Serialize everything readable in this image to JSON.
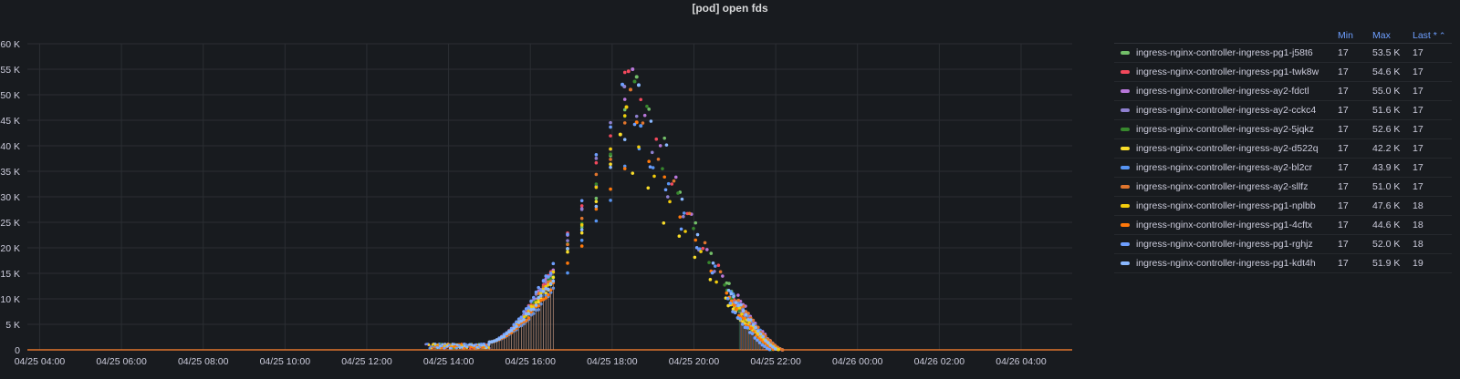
{
  "chart_data": {
    "type": "scatter",
    "title": "[pod] open fds",
    "y_ticks": [
      "60 K",
      "55 K",
      "50 K",
      "45 K",
      "40 K",
      "35 K",
      "30 K",
      "25 K",
      "20 K",
      "15 K",
      "10 K",
      "5 K",
      "0"
    ],
    "y_range": [
      0,
      60000
    ],
    "x_ticks": [
      "04/25 04:00",
      "04/25 06:00",
      "04/25 08:00",
      "04/25 10:00",
      "04/25 12:00",
      "04/25 14:00",
      "04/25 16:00",
      "04/25 18:00",
      "04/25 20:00",
      "04/25 22:00",
      "04/26 00:00",
      "04/26 02:00",
      "04/26 04:00"
    ],
    "x_range_hours": [
      3.7,
      29.25
    ],
    "x_tick_hours": [
      4,
      6,
      8,
      10,
      12,
      14,
      16,
      18,
      20,
      22,
      24,
      26,
      28
    ],
    "grid": true,
    "legend_placement": "right",
    "legend_columns": [
      "Min",
      "Max",
      "Last *"
    ],
    "series": [
      {
        "name": "ingress-nginx-controller-ingress-pg1-j58t6",
        "color": "#73bf69",
        "min": "17",
        "max": "53.5 K",
        "last": "17",
        "peak": 53500,
        "peak_h": 18.6
      },
      {
        "name": "ingress-nginx-controller-ingress-pg1-twk8w",
        "color": "#f2495c",
        "min": "17",
        "max": "54.6 K",
        "last": "17",
        "peak": 54600,
        "peak_h": 18.4
      },
      {
        "name": "ingress-nginx-controller-ingress-ay2-fdctl",
        "color": "#b877d9",
        "min": "17",
        "max": "55.0 K",
        "last": "17",
        "peak": 55000,
        "peak_h": 18.5
      },
      {
        "name": "ingress-nginx-controller-ingress-ay2-cckc4",
        "color": "#8f80cf",
        "min": "17",
        "max": "51.6 K",
        "last": "17",
        "peak": 51600,
        "peak_h": 18.3
      },
      {
        "name": "ingress-nginx-controller-ingress-ay2-5jqkz",
        "color": "#37872d",
        "min": "17",
        "max": "52.6 K",
        "last": "17",
        "peak": 52600,
        "peak_h": 18.55
      },
      {
        "name": "ingress-nginx-controller-ingress-ay2-d522q",
        "color": "#fade2a",
        "min": "17",
        "max": "42.2 K",
        "last": "17",
        "peak": 42200,
        "peak_h": 18.2
      },
      {
        "name": "ingress-nginx-controller-ingress-ay2-bl2cr",
        "color": "#5794f2",
        "min": "17",
        "max": "43.9 K",
        "last": "17",
        "peak": 43900,
        "peak_h": 18.7
      },
      {
        "name": "ingress-nginx-controller-ingress-ay2-sllfz",
        "color": "#e0752d",
        "min": "17",
        "max": "51.0 K",
        "last": "17",
        "peak": 51000,
        "peak_h": 18.45
      },
      {
        "name": "ingress-nginx-controller-ingress-pg1-nplbb",
        "color": "#f2cc0c",
        "min": "17",
        "max": "47.6 K",
        "last": "18",
        "peak": 47600,
        "peak_h": 18.35
      },
      {
        "name": "ingress-nginx-controller-ingress-pg1-4cftx",
        "color": "#ff780a",
        "min": "17",
        "max": "44.6 K",
        "last": "18",
        "peak": 44600,
        "peak_h": 18.6
      },
      {
        "name": "ingress-nginx-controller-ingress-pg1-rghjz",
        "color": "#6e9fff",
        "min": "17",
        "max": "52.0 K",
        "last": "18",
        "peak": 52000,
        "peak_h": 18.25
      },
      {
        "name": "ingress-nginx-controller-ingress-pg1-kdt4h",
        "color": "#8ab8ff",
        "min": "17",
        "max": "51.9 K",
        "last": "19",
        "peak": 51900,
        "peak_h": 18.65
      }
    ]
  }
}
